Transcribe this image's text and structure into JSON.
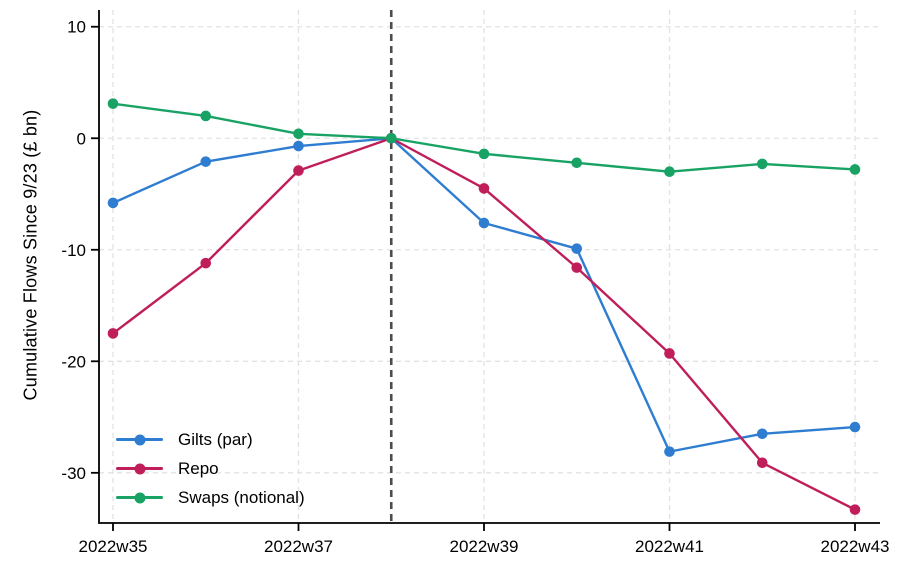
{
  "chart_data": {
    "type": "line",
    "title": "",
    "xlabel": "",
    "ylabel": "Cumulative Flows Since 9/23 (£ bn)",
    "x_categories": [
      "2022w35",
      "2022w36",
      "2022w37",
      "2022w38",
      "2022w39",
      "2022w40",
      "2022w41",
      "2022w42",
      "2022w43"
    ],
    "x_tick_labels": [
      "2022w35",
      "2022w37",
      "2022w39",
      "2022w41",
      "2022w43"
    ],
    "y_ticks": [
      10,
      0,
      -10,
      -20,
      -30
    ],
    "ylim": [
      -34.5,
      11.5
    ],
    "grid": true,
    "legend_position": "bottom-left",
    "reference_line": {
      "x": "2022w38",
      "style": "dashed",
      "color": "#4d4d4d"
    },
    "series": [
      {
        "name": "Gilts (par)",
        "color": "#2e7dd1",
        "values": [
          -5.8,
          -2.1,
          -0.7,
          0,
          -7.6,
          -9.9,
          -28.1,
          -26.5,
          -25.9
        ]
      },
      {
        "name": "Repo",
        "color": "#c01e5a",
        "values": [
          -17.5,
          -11.2,
          -2.9,
          0,
          -4.5,
          -11.6,
          -19.3,
          -29.1,
          -33.3
        ]
      },
      {
        "name": "Swaps (notional)",
        "color": "#18a264",
        "values": [
          3.1,
          2.0,
          0.4,
          0,
          -1.4,
          -2.2,
          -3.0,
          -2.3,
          -2.8
        ]
      }
    ],
    "colors": {
      "axis": "#000000",
      "gridline": "#e2e2e2",
      "tick_text": "#000000"
    }
  }
}
